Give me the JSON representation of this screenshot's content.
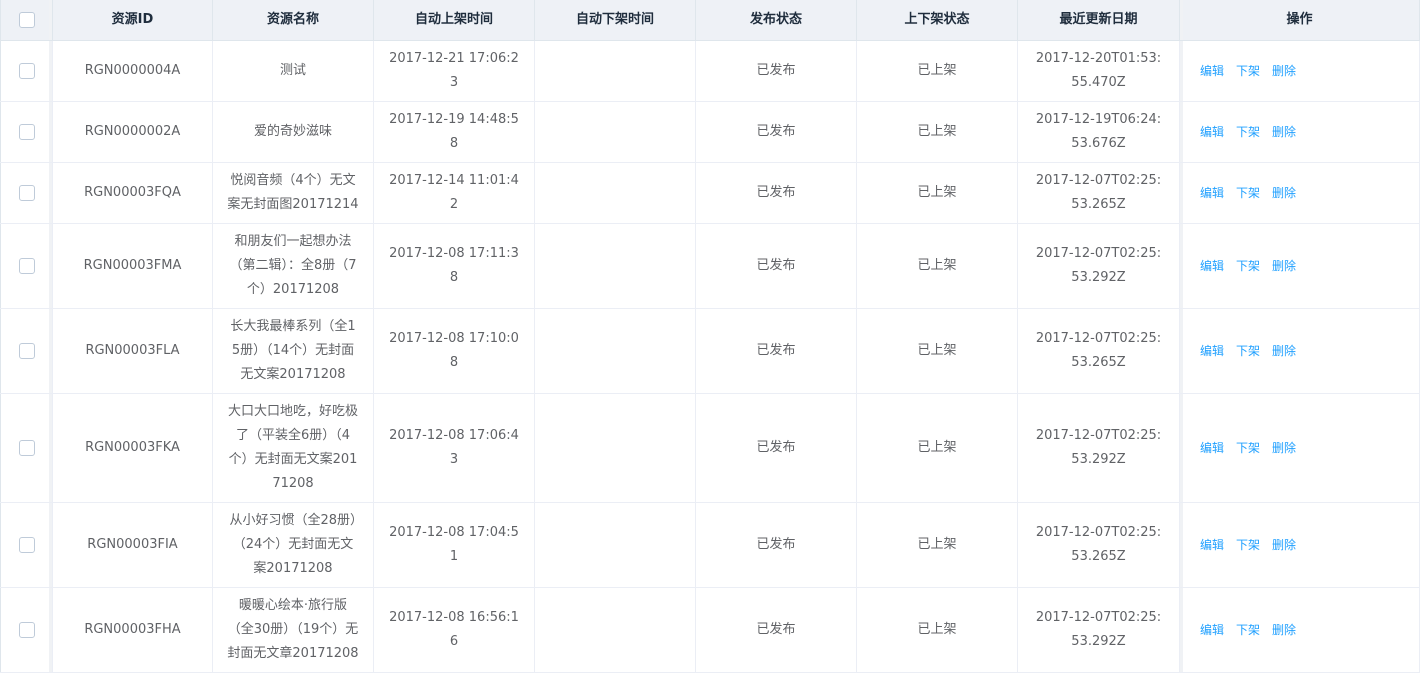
{
  "table": {
    "columns": [
      "资源ID",
      "资源名称",
      "自动上架时间",
      "自动下架时间",
      "发布状态",
      "上下架状态",
      "最近更新日期",
      "操作"
    ],
    "op_labels": [
      "编辑",
      "下架",
      "删除"
    ],
    "rows": [
      {
        "id": "RGN0000004A",
        "name": "测试",
        "auto_on": "2017-12-21 17:06:23",
        "auto_off": "",
        "publish": "已发布",
        "shelf": "已上架",
        "updated": "2017-12-20T01:53:55.470Z"
      },
      {
        "id": "RGN0000002A",
        "name": "爱的奇妙滋味",
        "auto_on": "2017-12-19 14:48:58",
        "auto_off": "",
        "publish": "已发布",
        "shelf": "已上架",
        "updated": "2017-12-19T06:24:53.676Z"
      },
      {
        "id": "RGN00003FQA",
        "name": "悦阅音频（4个）无文案无封面图20171214",
        "auto_on": "2017-12-14 11:01:42",
        "auto_off": "",
        "publish": "已发布",
        "shelf": "已上架",
        "updated": "2017-12-07T02:25:53.265Z"
      },
      {
        "id": "RGN00003FMA",
        "name": "和朋友们一起想办法（第二辑）：全8册（7个）20171208",
        "auto_on": "2017-12-08 17:11:38",
        "auto_off": "",
        "publish": "已发布",
        "shelf": "已上架",
        "updated": "2017-12-07T02:25:53.292Z"
      },
      {
        "id": "RGN00003FLA",
        "name": "长大我最棒系列（全15册）（14个）无封面无文案20171208",
        "auto_on": "2017-12-08 17:10:08",
        "auto_off": "",
        "publish": "已发布",
        "shelf": "已上架",
        "updated": "2017-12-07T02:25:53.265Z"
      },
      {
        "id": "RGN00003FKA",
        "name": "大口大口地吃，好吃极了（平装全6册）（4个）无封面无文案20171208",
        "auto_on": "2017-12-08 17:06:43",
        "auto_off": "",
        "publish": "已发布",
        "shelf": "已上架",
        "updated": "2017-12-07T02:25:53.292Z"
      },
      {
        "id": "RGN00003FIA",
        "name": "从小好习惯（全28册）（24个）无封面无文案20171208",
        "auto_on": "2017-12-08 17:04:51",
        "auto_off": "",
        "publish": "已发布",
        "shelf": "已上架",
        "updated": "2017-12-07T02:25:53.265Z"
      },
      {
        "id": "RGN00003FHA",
        "name": "暖暖心绘本·旅行版（全30册）（19个）无封面无文章20171208",
        "auto_on": "2017-12-08 16:56:16",
        "auto_off": "",
        "publish": "已发布",
        "shelf": "已上架",
        "updated": "2017-12-07T02:25:53.292Z"
      }
    ]
  }
}
